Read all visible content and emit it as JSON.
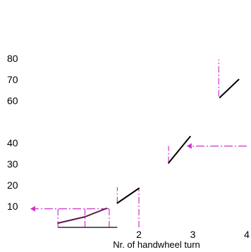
{
  "chart_data": {
    "type": "line",
    "title": "",
    "xlabel": "Nr. of handwheel turn",
    "ylabel": "",
    "xlim": [
      0,
      4
    ],
    "ylim": [
      0,
      80
    ],
    "grid": false,
    "legend": "none",
    "x_ticks": [
      2,
      3,
      4
    ],
    "y_ticks": [
      10,
      20,
      30,
      40,
      60,
      70,
      80
    ],
    "colors": {
      "primary": "#5c1a4a",
      "black": "#000000",
      "guide": "#cc33cc"
    },
    "series": [
      {
        "values": [
          [
            0.5,
            2.0
          ],
          [
            1.0,
            5.0
          ],
          [
            1.4,
            9.0
          ]
        ],
        "color": "primary"
      },
      {
        "values": [
          [
            1.6,
            11.5
          ],
          [
            2.0,
            18.5
          ]
        ],
        "color": "black"
      },
      {
        "values": [
          [
            2.55,
            30.5
          ],
          [
            2.95,
            43.0
          ]
        ],
        "color": "black"
      },
      {
        "values": [
          [
            3.5,
            61.5
          ],
          [
            3.85,
            70.0
          ]
        ],
        "color": "black"
      }
    ],
    "annotations": [
      {
        "kind": "arrow-h",
        "y": 8.8,
        "x_from": 1.45,
        "x_to": 0.0,
        "color": "guide"
      },
      {
        "kind": "vline",
        "x": 0.5,
        "y_from": 0.0,
        "y_to": 9.0,
        "color": "guide"
      },
      {
        "kind": "vline",
        "x": 1.0,
        "y_from": 0.0,
        "y_to": 9.0,
        "color": "guide"
      },
      {
        "kind": "vline",
        "x": 1.45,
        "y_from": 0.0,
        "y_to": 9.5,
        "color": "guide"
      },
      {
        "kind": "vline",
        "x": 1.6,
        "y_from": 11.5,
        "y_to": 19.0,
        "color": "guide"
      },
      {
        "kind": "vline",
        "x": 2.0,
        "y_from": 0.0,
        "y_to": 18.5,
        "color": "guide"
      },
      {
        "kind": "vline",
        "x": 2.55,
        "y_from": 30.5,
        "y_to": 38.5,
        "color": "guide"
      },
      {
        "kind": "arrow-h",
        "y": 38.5,
        "x_from": 4.0,
        "x_to": 2.9,
        "color": "guide"
      },
      {
        "kind": "vline",
        "x": 3.48,
        "y_from": 62.0,
        "y_to": 79.5,
        "color": "guide"
      },
      {
        "kind": "hline",
        "y": 0.0,
        "x_from": 0.5,
        "x_to": 1.6,
        "color": "black"
      }
    ]
  }
}
